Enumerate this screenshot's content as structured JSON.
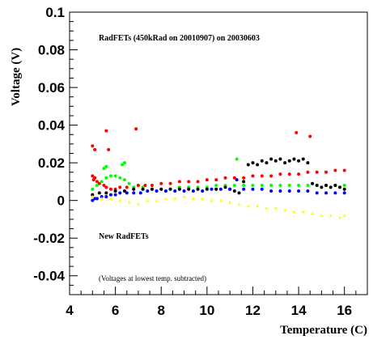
{
  "chart_data": {
    "type": "scatter",
    "title": "",
    "xlabel": "Temperature (C)",
    "ylabel": "Voltage (V)",
    "xlim": [
      4,
      17
    ],
    "ylim": [
      -0.05,
      0.1
    ],
    "x_ticks": [
      "4",
      "6",
      "8",
      "10",
      "12",
      "14",
      "16"
    ],
    "x_tick_values": [
      4,
      6,
      8,
      10,
      12,
      14,
      16
    ],
    "y_ticks": [
      "0.1",
      "0.08",
      "0.06",
      "0.04",
      "0.02",
      "0",
      "-0.02",
      "-0.04"
    ],
    "y_tick_values": [
      0.1,
      0.08,
      0.06,
      0.04,
      0.02,
      0,
      -0.02,
      -0.04
    ],
    "grid": false,
    "annotations": [
      "RadFETs (450kRad on 20010907) on 20030603",
      "New RadFETs",
      "(Voltages at lowest temp. subtracted)"
    ],
    "series": [
      {
        "color": "#ff0000",
        "x": [
          5.0,
          5.05,
          5.1,
          5.2,
          5.3,
          5.5,
          5.6,
          5.8,
          6.0,
          6.2,
          6.5,
          6.8,
          7.0,
          7.3,
          7.6,
          8.0,
          8.4,
          8.8,
          9.2,
          9.6,
          10.0,
          10.4,
          10.8,
          11.2,
          11.6,
          12.0,
          12.4,
          12.8,
          13.2,
          13.6,
          14.0,
          14.4,
          14.8,
          15.2,
          15.6,
          16.0,
          5.0,
          5.1,
          5.6,
          5.7,
          6.9,
          13.9,
          14.5
        ],
        "y": [
          0.013,
          0.011,
          0.012,
          0.01,
          0.009,
          0.008,
          0.007,
          0.006,
          0.006,
          0.007,
          0.007,
          0.007,
          0.008,
          0.008,
          0.008,
          0.009,
          0.009,
          0.01,
          0.01,
          0.01,
          0.011,
          0.011,
          0.012,
          0.012,
          0.012,
          0.013,
          0.013,
          0.013,
          0.014,
          0.014,
          0.014,
          0.015,
          0.015,
          0.015,
          0.016,
          0.016,
          0.029,
          0.027,
          0.037,
          0.027,
          0.038,
          0.036,
          0.034
        ]
      },
      {
        "color": "#00ff00",
        "x": [
          5.0,
          5.2,
          5.4,
          5.6,
          5.8,
          6.0,
          6.2,
          6.4,
          6.6,
          6.8,
          7.2,
          7.6,
          8.0,
          8.4,
          8.8,
          9.2,
          9.6,
          10.0,
          10.4,
          10.8,
          11.2,
          11.6,
          12.0,
          12.4,
          12.8,
          13.2,
          13.6,
          14.0,
          14.4,
          14.8,
          15.2,
          15.6,
          16.0,
          5.5,
          5.6,
          6.3,
          6.4,
          11.3
        ],
        "y": [
          0.006,
          0.008,
          0.01,
          0.012,
          0.013,
          0.013,
          0.012,
          0.011,
          0.009,
          0.007,
          0.007,
          0.006,
          0.006,
          0.006,
          0.007,
          0.007,
          0.007,
          0.007,
          0.008,
          0.008,
          0.008,
          0.008,
          0.008,
          0.008,
          0.008,
          0.008,
          0.008,
          0.008,
          0.008,
          0.008,
          0.008,
          0.008,
          0.008,
          0.017,
          0.018,
          0.019,
          0.02,
          0.022
        ]
      },
      {
        "color": "#000000",
        "x": [
          5.0,
          5.3,
          5.6,
          6.0,
          6.4,
          6.8,
          7.2,
          7.6,
          8.0,
          8.4,
          8.8,
          9.2,
          9.6,
          10.0,
          10.4,
          10.8,
          11.0,
          11.2,
          11.4,
          11.6,
          11.8,
          12.0,
          12.2,
          12.4,
          12.6,
          12.8,
          13.0,
          13.2,
          13.4,
          13.6,
          13.8,
          14.0,
          14.2,
          14.4,
          14.6,
          14.8,
          15.0,
          15.2,
          15.4,
          15.6,
          15.8,
          16.0
        ],
        "y": [
          0.003,
          0.004,
          0.004,
          0.005,
          0.005,
          0.006,
          0.006,
          0.006,
          0.006,
          0.006,
          0.006,
          0.006,
          0.006,
          0.006,
          0.006,
          0.007,
          0.006,
          0.005,
          0.004,
          0.01,
          0.019,
          0.02,
          0.019,
          0.021,
          0.02,
          0.022,
          0.021,
          0.022,
          0.02,
          0.021,
          0.022,
          0.021,
          0.022,
          0.02,
          0.009,
          0.008,
          0.007,
          0.008,
          0.007,
          0.008,
          0.007,
          0.006
        ]
      },
      {
        "color": "#0000ff",
        "x": [
          5.0,
          5.1,
          5.2,
          5.4,
          5.6,
          5.8,
          6.0,
          6.2,
          6.5,
          6.8,
          7.1,
          7.4,
          7.8,
          8.2,
          8.6,
          9.0,
          9.4,
          9.8,
          10.2,
          10.6,
          11.0,
          11.3,
          11.6,
          12.0,
          12.4,
          12.8,
          13.2,
          13.6,
          14.0,
          14.4,
          14.8,
          15.2,
          15.6,
          16.0
        ],
        "y": [
          0.0,
          0.001,
          0.001,
          0.002,
          0.002,
          0.003,
          0.003,
          0.004,
          0.004,
          0.004,
          0.004,
          0.005,
          0.005,
          0.005,
          0.005,
          0.005,
          0.005,
          0.005,
          0.006,
          0.006,
          0.006,
          0.011,
          0.006,
          0.006,
          0.006,
          0.005,
          0.005,
          0.005,
          0.005,
          0.005,
          0.004,
          0.004,
          0.004,
          0.004
        ]
      },
      {
        "color": "#ffff00",
        "x": [
          5.0,
          5.4,
          5.8,
          6.2,
          6.6,
          7.0,
          7.4,
          7.8,
          8.2,
          8.6,
          9.0,
          9.4,
          9.8,
          10.2,
          10.6,
          11.0,
          11.4,
          11.8,
          12.2,
          12.6,
          13.0,
          13.4,
          13.8,
          14.2,
          14.6,
          15.0,
          15.4,
          15.8,
          16.0
        ],
        "y": [
          0.002,
          0.001,
          0.001,
          0.0,
          -0.001,
          -0.002,
          0.0,
          0.0,
          0.001,
          0.001,
          0.002,
          0.001,
          0.001,
          0.0,
          0.0,
          -0.001,
          -0.002,
          -0.003,
          -0.003,
          -0.004,
          -0.004,
          -0.005,
          -0.006,
          -0.006,
          -0.007,
          -0.008,
          -0.008,
          -0.009,
          -0.008
        ]
      }
    ]
  }
}
